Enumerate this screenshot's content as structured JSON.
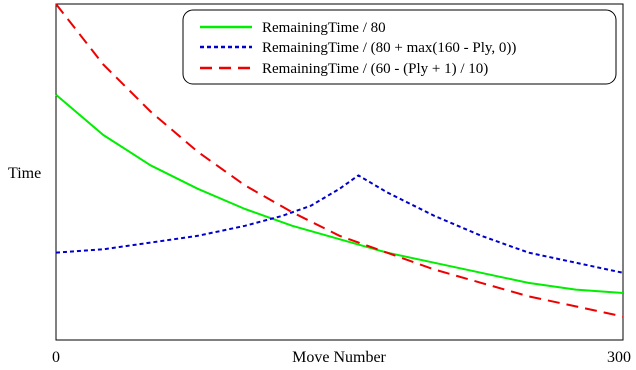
{
  "chart_data": {
    "type": "line",
    "title": "",
    "xlabel": "Move Number",
    "ylabel": "Time",
    "xlim": [
      0,
      300
    ],
    "ylim": [
      0,
      1
    ],
    "x_tick_labels": [
      "0",
      "300"
    ],
    "grid": false,
    "legend_position": "top-right",
    "series": [
      {
        "name": "RemainingTime / 80",
        "color": "#00ee00",
        "dash": "solid",
        "x": [
          0,
          25,
          50,
          75,
          100,
          125,
          150,
          175,
          200,
          225,
          250,
          275,
          300
        ],
        "y": [
          0.73,
          0.61,
          0.52,
          0.45,
          0.39,
          0.34,
          0.3,
          0.26,
          0.23,
          0.2,
          0.17,
          0.15,
          0.14
        ]
      },
      {
        "name": "RemainingTime / (80 + max(160 - Ply, 0))",
        "color": "#0000cc",
        "dash": "dotted",
        "x": [
          0,
          25,
          50,
          75,
          100,
          120,
          135,
          150,
          160,
          175,
          200,
          225,
          250,
          275,
          300
        ],
        "y": [
          0.26,
          0.27,
          0.29,
          0.31,
          0.34,
          0.37,
          0.4,
          0.45,
          0.49,
          0.44,
          0.37,
          0.31,
          0.26,
          0.23,
          0.2
        ]
      },
      {
        "name": "RemainingTime / (60 - (Ply + 1) / 10)",
        "color": "#ee0000",
        "dash": "dashed",
        "x": [
          0,
          25,
          50,
          75,
          100,
          125,
          150,
          175,
          200,
          225,
          250,
          275,
          300
        ],
        "y": [
          1.0,
          0.82,
          0.68,
          0.56,
          0.46,
          0.38,
          0.31,
          0.26,
          0.21,
          0.17,
          0.13,
          0.1,
          0.07
        ]
      }
    ]
  }
}
